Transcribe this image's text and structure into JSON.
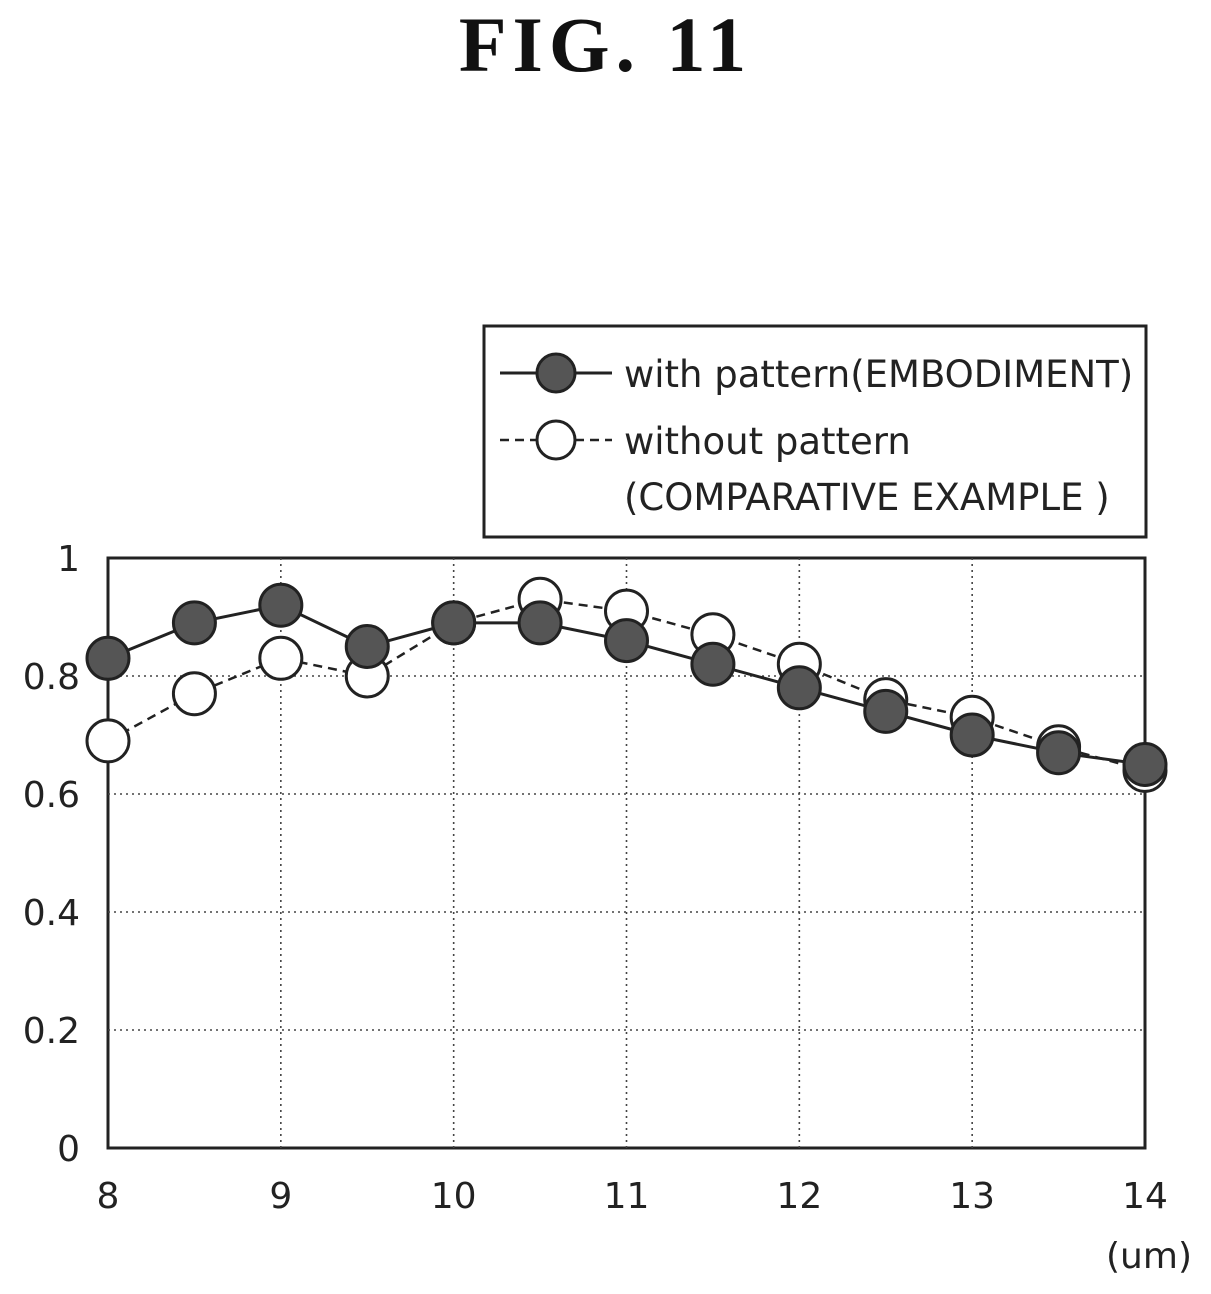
{
  "figure_title": "FIG. 11",
  "chart_data": {
    "type": "line",
    "title": "",
    "xlabel": "",
    "ylabel": "",
    "x_unit": "(um)",
    "x": [
      8,
      8.5,
      9,
      9.5,
      10,
      10.5,
      11,
      11.5,
      12,
      12.5,
      13,
      13.5,
      14
    ],
    "xlim": [
      8,
      14
    ],
    "ylim": [
      0,
      1
    ],
    "x_ticks": [
      "8",
      "9",
      "10",
      "11",
      "12",
      "13",
      "14"
    ],
    "y_ticks": [
      "0",
      "0.2",
      "0.4",
      "0.6",
      "0.8",
      "1"
    ],
    "grid": true,
    "legend_position": "top-right, above plot",
    "series": [
      {
        "name": "with pattern(EMBODIMENT)",
        "marker": "filled-circle",
        "line_style": "solid",
        "values": [
          0.83,
          0.89,
          0.92,
          0.85,
          0.89,
          0.89,
          0.86,
          0.82,
          0.78,
          0.74,
          0.7,
          0.67,
          0.65
        ]
      },
      {
        "name": "without pattern",
        "name_line2": "(COMPARATIVE EXAMPLE )",
        "marker": "open-circle",
        "line_style": "dashed",
        "values": [
          0.69,
          0.77,
          0.83,
          0.8,
          0.89,
          0.93,
          0.91,
          0.87,
          0.82,
          0.76,
          0.73,
          0.68,
          0.64
        ]
      }
    ]
  }
}
